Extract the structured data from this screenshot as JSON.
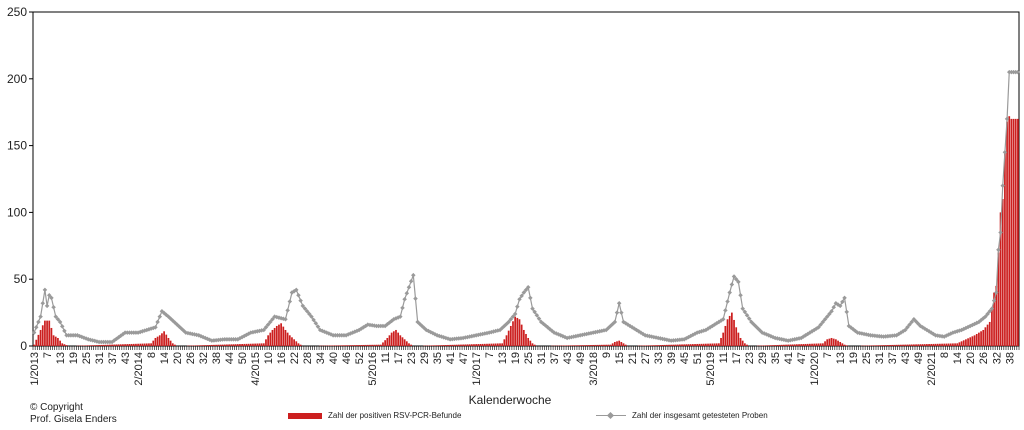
{
  "chart_data": {
    "type": "bar+line",
    "xlabel": "Kalenderwoche",
    "ylabel": "",
    "ylim": [
      0,
      250
    ],
    "y_ticks": [
      0,
      50,
      100,
      150,
      200,
      250
    ],
    "x_tick_labels": [
      "1/2013",
      "7",
      "13",
      "19",
      "25",
      "31",
      "37",
      "43",
      "2/2014",
      "8",
      "14",
      "20",
      "26",
      "32",
      "38",
      "44",
      "50",
      "4/2015",
      "10",
      "16",
      "22",
      "28",
      "34",
      "40",
      "46",
      "52",
      "5/2016",
      "11",
      "17",
      "23",
      "29",
      "35",
      "41",
      "47",
      "1/2017",
      "7",
      "13",
      "19",
      "25",
      "31",
      "37",
      "43",
      "49",
      "3/2018",
      "9",
      "15",
      "21",
      "27",
      "33",
      "39",
      "45",
      "51",
      "5/2019",
      "11",
      "17",
      "23",
      "29",
      "35",
      "41",
      "47",
      "1/2020",
      "7",
      "13",
      "19",
      "25",
      "31",
      "37",
      "43",
      "49",
      "2/2021",
      "8",
      "14",
      "20",
      "26",
      "32",
      "38"
    ],
    "weeks_per_tick": 6,
    "week_count": 455,
    "tested_anchors": [
      [
        0,
        10
      ],
      [
        3,
        22
      ],
      [
        5,
        42
      ],
      [
        6,
        30
      ],
      [
        7,
        38
      ],
      [
        8,
        36
      ],
      [
        10,
        22
      ],
      [
        12,
        18
      ],
      [
        15,
        8
      ],
      [
        20,
        8
      ],
      [
        25,
        5
      ],
      [
        30,
        3
      ],
      [
        36,
        3
      ],
      [
        42,
        10
      ],
      [
        48,
        10
      ],
      [
        56,
        14
      ],
      [
        59,
        26
      ],
      [
        62,
        22
      ],
      [
        66,
        16
      ],
      [
        70,
        10
      ],
      [
        76,
        8
      ],
      [
        82,
        4
      ],
      [
        88,
        5
      ],
      [
        94,
        5
      ],
      [
        100,
        10
      ],
      [
        106,
        12
      ],
      [
        111,
        22
      ],
      [
        116,
        20
      ],
      [
        119,
        40
      ],
      [
        121,
        42
      ],
      [
        124,
        30
      ],
      [
        128,
        22
      ],
      [
        132,
        12
      ],
      [
        138,
        8
      ],
      [
        144,
        8
      ],
      [
        150,
        12
      ],
      [
        154,
        16
      ],
      [
        158,
        15
      ],
      [
        162,
        15
      ],
      [
        166,
        20
      ],
      [
        169,
        22
      ],
      [
        171,
        35
      ],
      [
        173,
        44
      ],
      [
        175,
        53
      ],
      [
        177,
        18
      ],
      [
        181,
        12
      ],
      [
        186,
        8
      ],
      [
        192,
        5
      ],
      [
        198,
        6
      ],
      [
        204,
        8
      ],
      [
        210,
        10
      ],
      [
        215,
        12
      ],
      [
        219,
        18
      ],
      [
        222,
        24
      ],
      [
        224,
        35
      ],
      [
        226,
        40
      ],
      [
        228,
        44
      ],
      [
        230,
        28
      ],
      [
        234,
        18
      ],
      [
        240,
        10
      ],
      [
        246,
        6
      ],
      [
        252,
        8
      ],
      [
        258,
        10
      ],
      [
        264,
        12
      ],
      [
        268,
        18
      ],
      [
        270,
        32
      ],
      [
        272,
        18
      ],
      [
        276,
        14
      ],
      [
        282,
        8
      ],
      [
        288,
        6
      ],
      [
        294,
        4
      ],
      [
        300,
        5
      ],
      [
        306,
        10
      ],
      [
        310,
        12
      ],
      [
        314,
        16
      ],
      [
        318,
        20
      ],
      [
        321,
        40
      ],
      [
        323,
        52
      ],
      [
        325,
        48
      ],
      [
        327,
        28
      ],
      [
        331,
        18
      ],
      [
        336,
        10
      ],
      [
        342,
        6
      ],
      [
        348,
        4
      ],
      [
        354,
        6
      ],
      [
        358,
        10
      ],
      [
        362,
        14
      ],
      [
        365,
        20
      ],
      [
        368,
        26
      ],
      [
        370,
        32
      ],
      [
        372,
        30
      ],
      [
        374,
        36
      ],
      [
        376,
        15
      ],
      [
        380,
        10
      ],
      [
        386,
        8
      ],
      [
        392,
        7
      ],
      [
        398,
        8
      ],
      [
        402,
        12
      ],
      [
        406,
        20
      ],
      [
        409,
        15
      ],
      [
        412,
        12
      ],
      [
        416,
        8
      ],
      [
        420,
        7
      ],
      [
        424,
        10
      ],
      [
        428,
        12
      ],
      [
        432,
        15
      ],
      [
        436,
        18
      ],
      [
        439,
        22
      ],
      [
        442,
        28
      ],
      [
        444,
        40
      ],
      [
        445,
        72
      ],
      [
        446,
        85
      ],
      [
        447,
        120
      ],
      [
        448,
        145
      ],
      [
        449,
        170
      ],
      [
        450,
        205
      ],
      [
        451,
        205
      ]
    ],
    "positive_anchors": [
      [
        0,
        1
      ],
      [
        3,
        12
      ],
      [
        5,
        19
      ],
      [
        7,
        19
      ],
      [
        9,
        8
      ],
      [
        11,
        6
      ],
      [
        13,
        2
      ],
      [
        16,
        0
      ],
      [
        54,
        2
      ],
      [
        56,
        6
      ],
      [
        58,
        8
      ],
      [
        60,
        11
      ],
      [
        62,
        6
      ],
      [
        64,
        2
      ],
      [
        66,
        0
      ],
      [
        106,
        2
      ],
      [
        108,
        8
      ],
      [
        110,
        12
      ],
      [
        112,
        15
      ],
      [
        114,
        17
      ],
      [
        116,
        12
      ],
      [
        118,
        8
      ],
      [
        120,
        5
      ],
      [
        122,
        2
      ],
      [
        124,
        0
      ],
      [
        160,
        1
      ],
      [
        163,
        6
      ],
      [
        165,
        10
      ],
      [
        167,
        12
      ],
      [
        169,
        8
      ],
      [
        171,
        5
      ],
      [
        173,
        2
      ],
      [
        175,
        0
      ],
      [
        216,
        2
      ],
      [
        218,
        8
      ],
      [
        220,
        15
      ],
      [
        222,
        22
      ],
      [
        224,
        20
      ],
      [
        226,
        12
      ],
      [
        228,
        6
      ],
      [
        230,
        2
      ],
      [
        232,
        0
      ],
      [
        266,
        1
      ],
      [
        268,
        3
      ],
      [
        270,
        4
      ],
      [
        272,
        2
      ],
      [
        274,
        0
      ],
      [
        316,
        2
      ],
      [
        318,
        10
      ],
      [
        320,
        20
      ],
      [
        322,
        25
      ],
      [
        324,
        14
      ],
      [
        326,
        6
      ],
      [
        328,
        2
      ],
      [
        330,
        0
      ],
      [
        364,
        2
      ],
      [
        366,
        5
      ],
      [
        368,
        6
      ],
      [
        370,
        5
      ],
      [
        372,
        3
      ],
      [
        374,
        1
      ],
      [
        376,
        0
      ],
      [
        426,
        2
      ],
      [
        430,
        5
      ],
      [
        434,
        8
      ],
      [
        438,
        12
      ],
      [
        441,
        18
      ],
      [
        443,
        40
      ],
      [
        444,
        45
      ],
      [
        445,
        70
      ],
      [
        446,
        100
      ],
      [
        447,
        110
      ],
      [
        448,
        145
      ],
      [
        449,
        168
      ],
      [
        450,
        172
      ],
      [
        451,
        170
      ]
    ],
    "series": [
      {
        "name": "Zahl der positiven RSV-PCR-Befunde",
        "type": "bar",
        "color": "#cc1f1f",
        "key": "positive_anchors"
      },
      {
        "name": "Zahl der insgesamt getesteten Proben",
        "type": "line",
        "color": "#9a9a9a",
        "key": "tested_anchors"
      }
    ],
    "grid": false,
    "legend_position": "bottom"
  },
  "copyright": {
    "line1": "© Copyright",
    "line2": "Prof. Gisela Enders"
  }
}
